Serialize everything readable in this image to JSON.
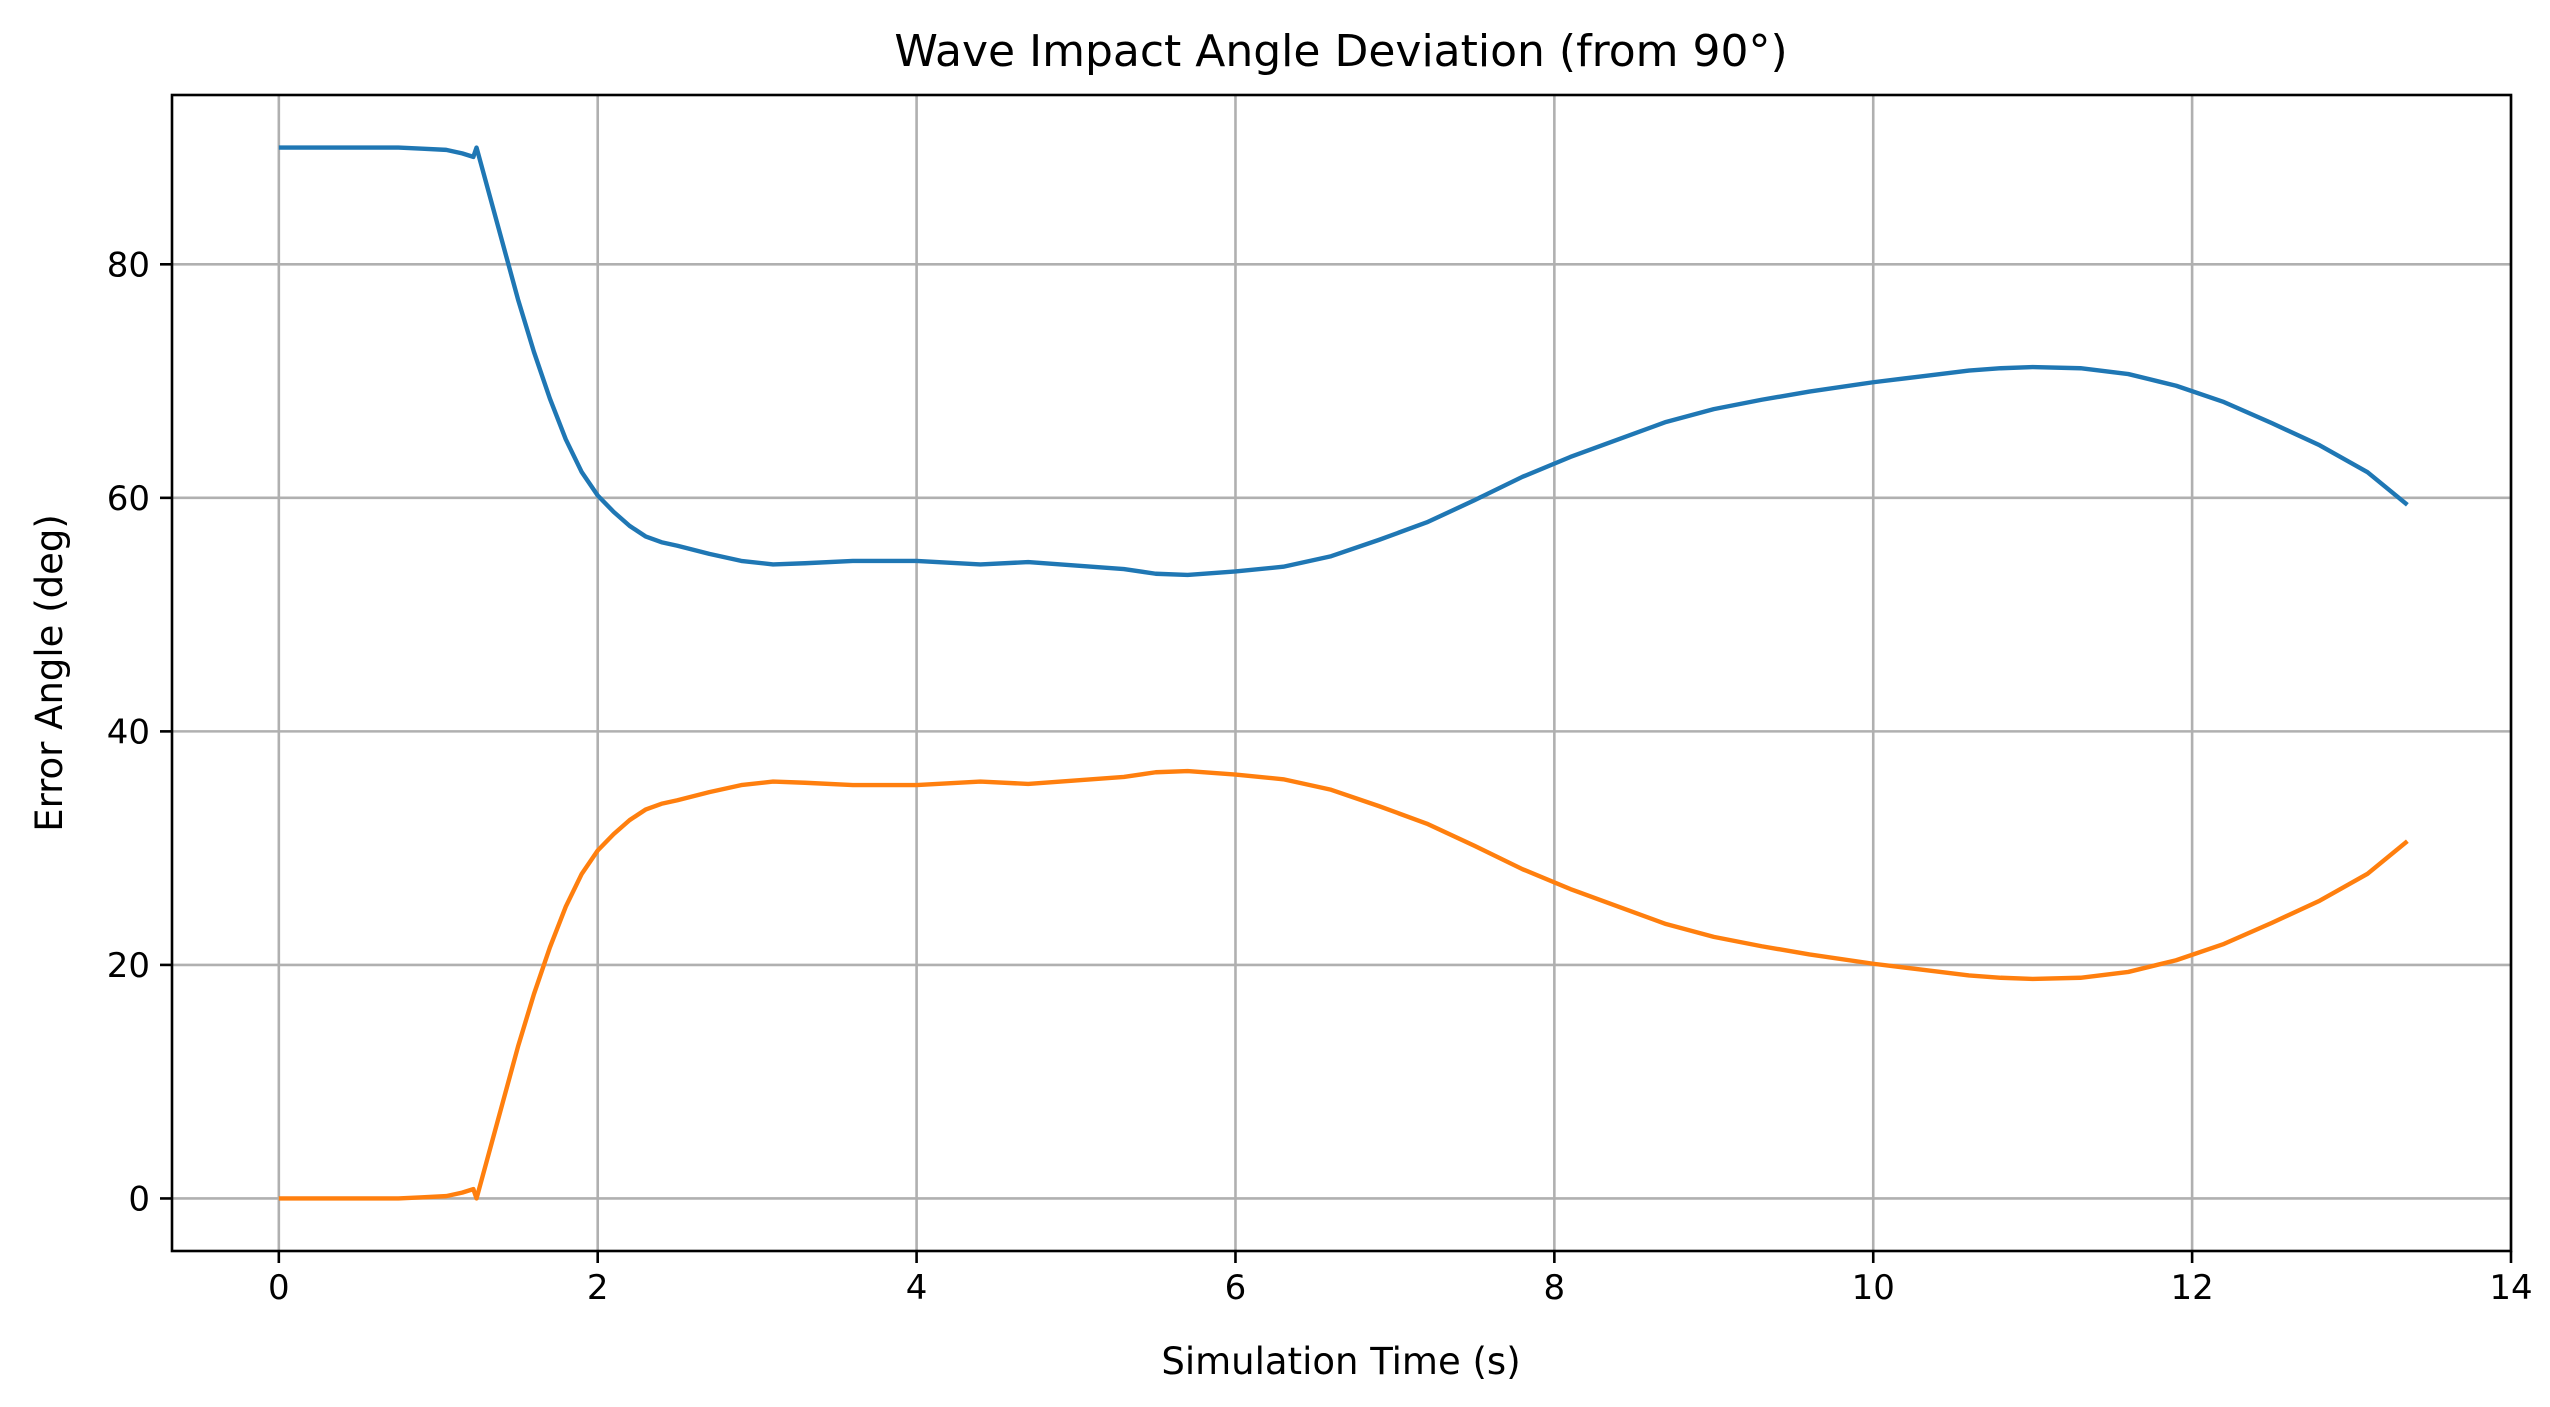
{
  "chart_data": {
    "type": "line",
    "title": "Wave Impact Angle Deviation (from 90°)",
    "xlabel": "Simulation Time (s)",
    "ylabel": "Error Angle (deg)",
    "xlim": [
      -0.67,
      14.0
    ],
    "ylim": [
      -4.5,
      94.5
    ],
    "xticks": [
      0,
      2,
      4,
      6,
      8,
      10,
      12,
      14
    ],
    "yticks": [
      0,
      20,
      40,
      60,
      80
    ],
    "grid": true,
    "legend": "none",
    "series": [
      {
        "color": "#1f77b4",
        "points": [
          [
            0,
            90
          ],
          [
            0.75,
            90
          ],
          [
            0.9,
            89.9
          ],
          [
            1.05,
            89.8
          ],
          [
            1.15,
            89.5
          ],
          [
            1.22,
            89.2
          ],
          [
            1.24,
            90
          ],
          [
            1.3,
            87
          ],
          [
            1.4,
            82
          ],
          [
            1.5,
            77
          ],
          [
            1.6,
            72.5
          ],
          [
            1.7,
            68.5
          ],
          [
            1.8,
            65
          ],
          [
            1.9,
            62.2
          ],
          [
            2.0,
            60.2
          ],
          [
            2.1,
            58.8
          ],
          [
            2.2,
            57.6
          ],
          [
            2.3,
            56.7
          ],
          [
            2.4,
            56.2
          ],
          [
            2.5,
            55.9
          ],
          [
            2.7,
            55.2
          ],
          [
            2.9,
            54.6
          ],
          [
            3.1,
            54.3
          ],
          [
            3.3,
            54.4
          ],
          [
            3.6,
            54.6
          ],
          [
            4.0,
            54.6
          ],
          [
            4.4,
            54.3
          ],
          [
            4.7,
            54.5
          ],
          [
            5.0,
            54.2
          ],
          [
            5.3,
            53.9
          ],
          [
            5.5,
            53.5
          ],
          [
            5.7,
            53.4
          ],
          [
            6.0,
            53.7
          ],
          [
            6.3,
            54.1
          ],
          [
            6.6,
            55
          ],
          [
            6.9,
            56.4
          ],
          [
            7.2,
            57.9
          ],
          [
            7.5,
            59.8
          ],
          [
            7.8,
            61.8
          ],
          [
            8.1,
            63.5
          ],
          [
            8.4,
            65
          ],
          [
            8.7,
            66.5
          ],
          [
            9.0,
            67.6
          ],
          [
            9.3,
            68.4
          ],
          [
            9.6,
            69.1
          ],
          [
            10.0,
            69.9
          ],
          [
            10.3,
            70.4
          ],
          [
            10.6,
            70.9
          ],
          [
            10.8,
            71.1
          ],
          [
            11.0,
            71.2
          ],
          [
            11.3,
            71.1
          ],
          [
            11.6,
            70.6
          ],
          [
            11.9,
            69.6
          ],
          [
            12.2,
            68.2
          ],
          [
            12.5,
            66.4
          ],
          [
            12.8,
            64.5
          ],
          [
            13.1,
            62.2
          ],
          [
            13.35,
            59.4
          ]
        ]
      },
      {
        "color": "#ff7f0e",
        "points": [
          [
            0,
            0
          ],
          [
            0.75,
            0
          ],
          [
            0.9,
            0.1
          ],
          [
            1.05,
            0.2
          ],
          [
            1.15,
            0.5
          ],
          [
            1.22,
            0.8
          ],
          [
            1.24,
            0
          ],
          [
            1.3,
            3
          ],
          [
            1.4,
            8
          ],
          [
            1.5,
            13
          ],
          [
            1.6,
            17.5
          ],
          [
            1.7,
            21.5
          ],
          [
            1.8,
            25
          ],
          [
            1.9,
            27.8
          ],
          [
            2.0,
            29.8
          ],
          [
            2.1,
            31.2
          ],
          [
            2.2,
            32.4
          ],
          [
            2.3,
            33.3
          ],
          [
            2.4,
            33.8
          ],
          [
            2.5,
            34.1
          ],
          [
            2.7,
            34.8
          ],
          [
            2.9,
            35.4
          ],
          [
            3.1,
            35.7
          ],
          [
            3.3,
            35.6
          ],
          [
            3.6,
            35.4
          ],
          [
            4.0,
            35.4
          ],
          [
            4.4,
            35.7
          ],
          [
            4.7,
            35.5
          ],
          [
            5.0,
            35.8
          ],
          [
            5.3,
            36.1
          ],
          [
            5.5,
            36.5
          ],
          [
            5.7,
            36.6
          ],
          [
            6.0,
            36.3
          ],
          [
            6.3,
            35.9
          ],
          [
            6.6,
            35
          ],
          [
            6.9,
            33.6
          ],
          [
            7.2,
            32.1
          ],
          [
            7.5,
            30.2
          ],
          [
            7.8,
            28.2
          ],
          [
            8.1,
            26.5
          ],
          [
            8.4,
            25
          ],
          [
            8.7,
            23.5
          ],
          [
            9.0,
            22.4
          ],
          [
            9.3,
            21.6
          ],
          [
            9.6,
            20.9
          ],
          [
            10.0,
            20.1
          ],
          [
            10.3,
            19.6
          ],
          [
            10.6,
            19.1
          ],
          [
            10.8,
            18.9
          ],
          [
            11.0,
            18.8
          ],
          [
            11.3,
            18.9
          ],
          [
            11.6,
            19.4
          ],
          [
            11.9,
            20.4
          ],
          [
            12.2,
            21.8
          ],
          [
            12.5,
            23.6
          ],
          [
            12.8,
            25.5
          ],
          [
            13.1,
            27.8
          ],
          [
            13.35,
            30.6
          ]
        ]
      }
    ]
  }
}
